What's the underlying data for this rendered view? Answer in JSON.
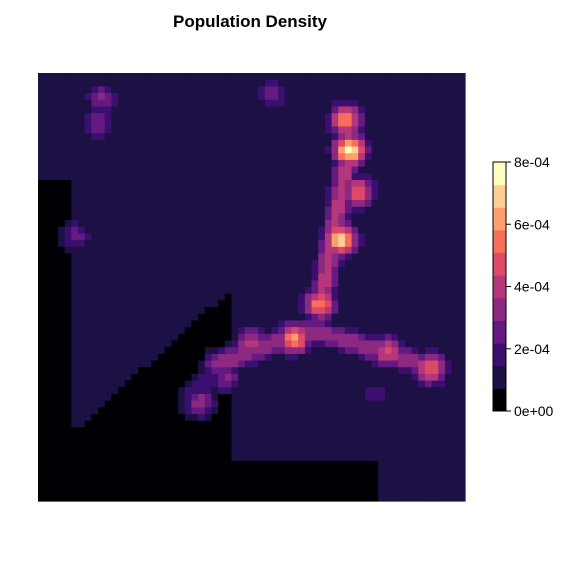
{
  "chart_data": {
    "type": "heatmap",
    "title": "Population Density",
    "legend": {
      "position": "right",
      "ticks": [
        {
          "value": 0.0,
          "label": "0e+00"
        },
        {
          "value": 0.0002,
          "label": "2e-04"
        },
        {
          "value": 0.0004,
          "label": "4e-04"
        },
        {
          "value": 0.0006,
          "label": "6e-04"
        },
        {
          "value": 0.0008,
          "label": "8e-04"
        }
      ],
      "range": [
        0,
        0.0008
      ],
      "colors": [
        "#000004",
        "#1c1044",
        "#3b0f70",
        "#641a80",
        "#8c2981",
        "#b5367a",
        "#de4968",
        "#f76f5c",
        "#fe9f6d",
        "#fecf92",
        "#fcfdbf"
      ]
    },
    "density_range": [
      0,
      0.0008
    ],
    "hotspots": [
      {
        "x": 0.73,
        "y": 0.82,
        "peak": 0.00082
      },
      {
        "x": 0.72,
        "y": 0.89,
        "peak": 0.00065
      },
      {
        "x": 0.75,
        "y": 0.72,
        "peak": 0.00058
      },
      {
        "x": 0.71,
        "y": 0.61,
        "peak": 0.00077
      },
      {
        "x": 0.66,
        "y": 0.46,
        "peak": 0.00062
      },
      {
        "x": 0.6,
        "y": 0.38,
        "peak": 0.00066
      },
      {
        "x": 0.5,
        "y": 0.37,
        "peak": 0.00046
      },
      {
        "x": 0.82,
        "y": 0.35,
        "peak": 0.00054
      },
      {
        "x": 0.92,
        "y": 0.31,
        "peak": 0.00058
      },
      {
        "x": 0.44,
        "y": 0.29,
        "peak": 0.00034
      },
      {
        "x": 0.38,
        "y": 0.23,
        "peak": 0.00036
      },
      {
        "x": 0.14,
        "y": 0.88,
        "peak": 0.00032
      },
      {
        "x": 0.15,
        "y": 0.94,
        "peak": 0.00034
      },
      {
        "x": 0.55,
        "y": 0.95,
        "peak": 0.0003
      },
      {
        "x": 0.09,
        "y": 0.62,
        "peak": 0.00028
      },
      {
        "x": 0.79,
        "y": 0.25,
        "peak": 0.00022
      }
    ],
    "ridges": [
      {
        "from": [
          0.73,
          0.83
        ],
        "to": [
          0.66,
          0.45
        ],
        "peak": 0.00045
      },
      {
        "from": [
          0.64,
          0.4
        ],
        "to": [
          0.42,
          0.32
        ],
        "peak": 0.0004
      },
      {
        "from": [
          0.64,
          0.4
        ],
        "to": [
          0.93,
          0.31
        ],
        "peak": 0.0004
      },
      {
        "from": [
          0.42,
          0.32
        ],
        "to": [
          0.36,
          0.24
        ],
        "peak": 0.00022
      }
    ],
    "background_region": {
      "description_free": true,
      "level": 0.00013
    }
  }
}
